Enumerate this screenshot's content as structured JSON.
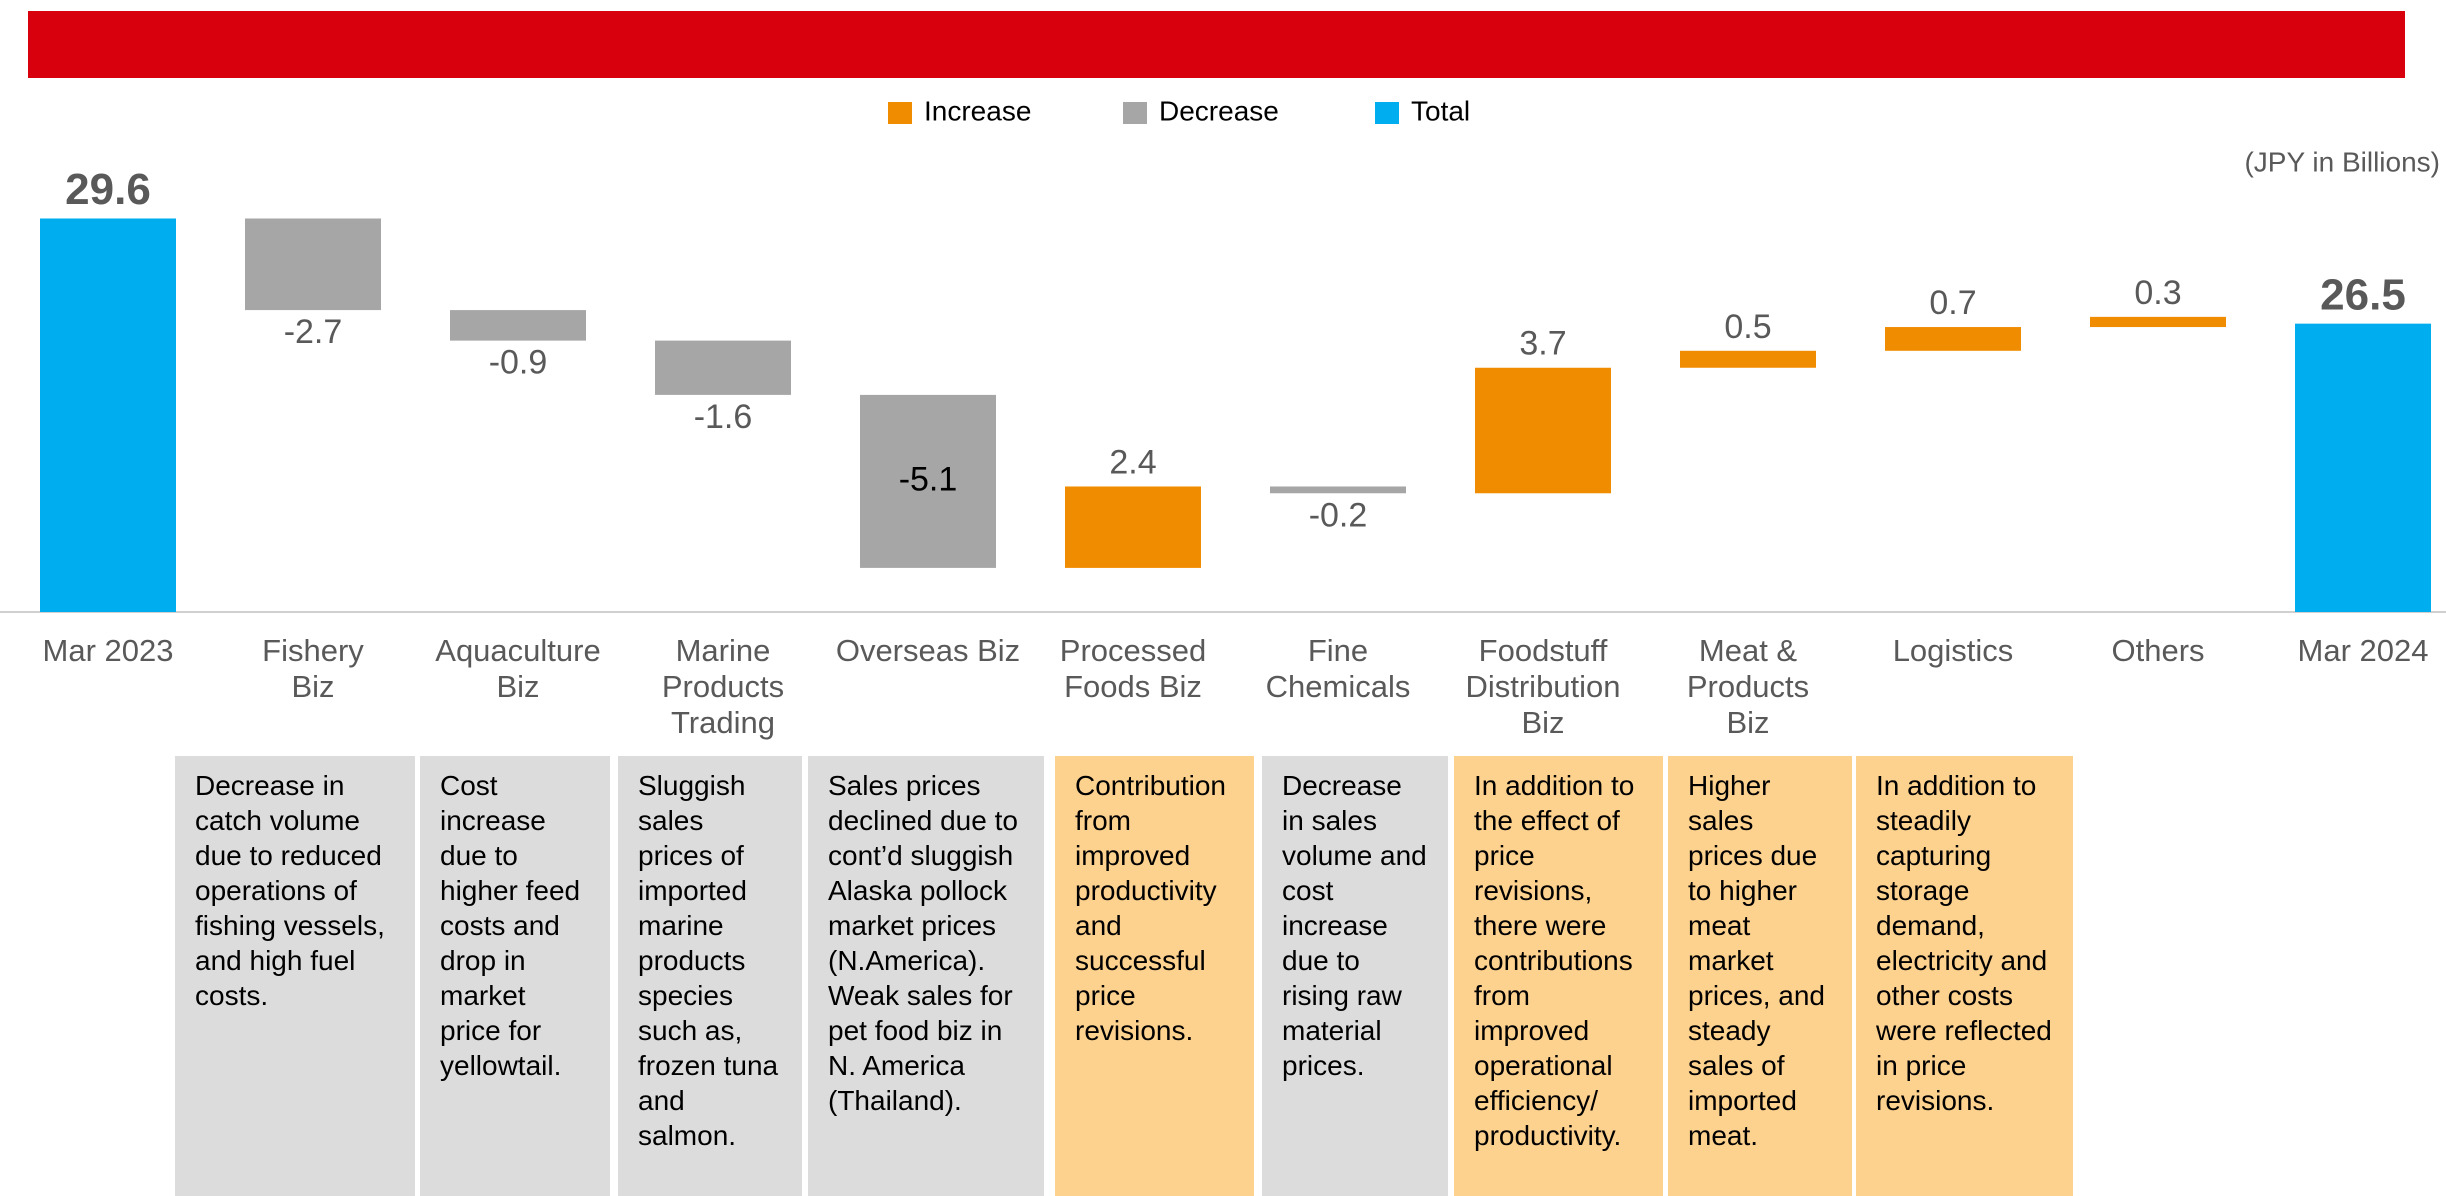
{
  "chart_data": {
    "type": "waterfall",
    "unit_label": "(JPY in Billions)",
    "legend": [
      {
        "name": "Increase",
        "color": "#f08c00"
      },
      {
        "name": "Decrease",
        "color": "#a6a6a6"
      },
      {
        "name": "Total",
        "color": "#00adef"
      }
    ],
    "categories": [
      "Mar 2023",
      "Fishery\nBiz",
      "Aquaculture\nBiz",
      "Marine\nProducts\nTrading",
      "Overseas Biz",
      "Processed\nFoods Biz",
      "Fine\nChemicals",
      "Foodstuff\nDistribution\nBiz",
      "Meat &\nProducts\nBiz",
      "Logistics",
      "Others",
      "Mar 2024"
    ],
    "values": [
      29.6,
      -2.7,
      -0.9,
      -1.6,
      -5.1,
      2.4,
      -0.2,
      3.7,
      0.5,
      0.7,
      0.3,
      26.5
    ],
    "ylim": [
      18,
      31
    ],
    "descriptions": [
      "Decrease in catch volume due to reduced operations of fishing vessels, and high fuel costs.",
      "Cost increase due to higher feed costs and drop in market price for yellowtail.",
      "Sluggish sales prices of imported marine products species such as, frozen tuna and salmon.",
      "Sales prices declined due to cont’d sluggish Alaska pollock market prices (N.America). Weak sales for pet food biz in N. America (Thailand).",
      "Contribution from improved productivity and successful price revisions.",
      "Decrease in sales volume and cost increase due to rising raw material prices.",
      "In addition to the effect of price revisions, there were contributions from improved operational efficiency/ productivity.",
      "Higher sales prices due to higher meat market prices, and steady sales of imported meat.",
      "In addition to steadily capturing storage demand, electricity and other costs were reflected in price revisions."
    ]
  }
}
